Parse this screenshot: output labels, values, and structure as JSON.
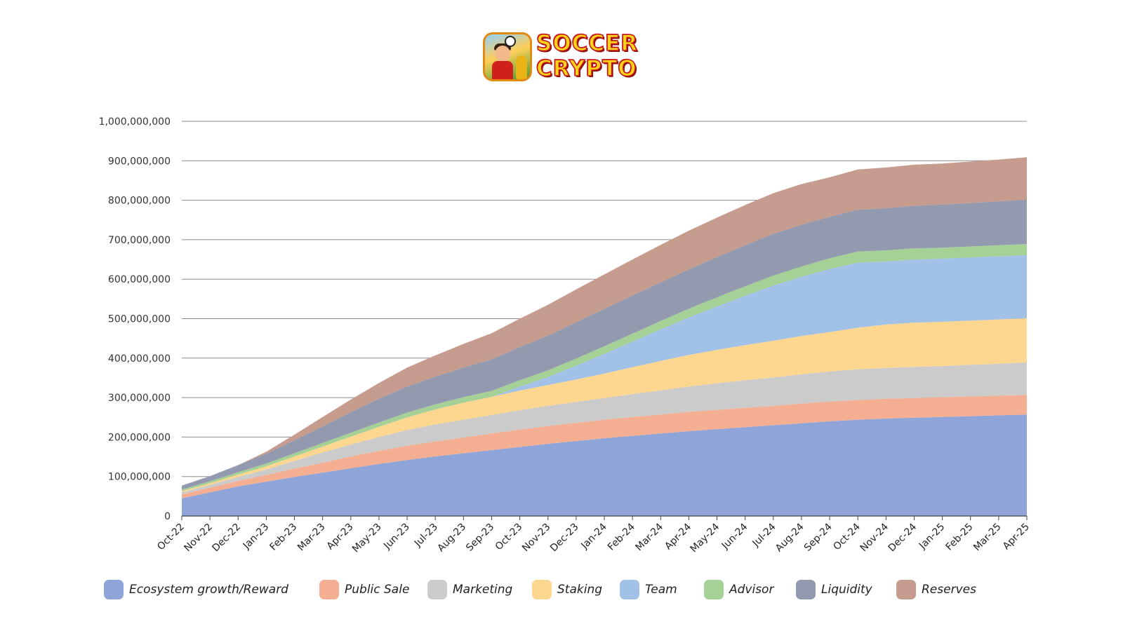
{
  "logo": {
    "line1": "SOCCER",
    "line2": "CRYPTO",
    "icon": "soccer-player-app-icon"
  },
  "chart_data": {
    "type": "area",
    "stacked": true,
    "title": "",
    "xlabel": "",
    "ylabel": "",
    "ylim": [
      0,
      1000000000
    ],
    "yticks": [
      "0",
      "100,000,000",
      "200,000,000",
      "300,000,000",
      "400,000,000",
      "500,000,000",
      "600,000,000",
      "700,000,000",
      "800,000,000",
      "900,000,000",
      "1,000,000,000"
    ],
    "grid": true,
    "legend_position": "bottom",
    "categories": [
      "Oct-22",
      "Nov-22",
      "Dec-22",
      "Jan-23",
      "Feb-23",
      "Mar-23",
      "Apr-23",
      "May-23",
      "Jun-23",
      "Jul-23",
      "Aug-23",
      "Sep-23",
      "Oct-23",
      "Nov-23",
      "Dec-23",
      "Jan-24",
      "Feb-24",
      "Mar-24",
      "Apr-24",
      "May-24",
      "Jun-24",
      "Jul-24",
      "Aug-24",
      "Sep-24",
      "Oct-24",
      "Nov-24",
      "Dec-24",
      "Jan-25",
      "Feb-25",
      "Mar-25",
      "Apr-25"
    ],
    "series": [
      {
        "name": "Ecosystem growth/Reward",
        "color": "#8fa5d9",
        "values": [
          45000000,
          60000000,
          75000000,
          87000000,
          99000000,
          110000000,
          121000000,
          132000000,
          142000000,
          151000000,
          159000000,
          167000000,
          175000000,
          183000000,
          190000000,
          197000000,
          203000000,
          209000000,
          215000000,
          220000000,
          225000000,
          230000000,
          235000000,
          240000000,
          244000000,
          247000000,
          249000000,
          251000000,
          253000000,
          255000000,
          257000000
        ]
      },
      {
        "name": "Public Sale",
        "color": "#f4af93",
        "values": [
          10000000,
          12000000,
          14000000,
          17000000,
          21000000,
          25000000,
          30000000,
          33000000,
          36000000,
          38000000,
          40000000,
          42000000,
          44000000,
          45000000,
          46000000,
          47000000,
          48000000,
          48000000,
          49000000,
          49000000,
          49000000,
          49000000,
          50000000,
          50000000,
          50000000,
          50000000,
          50000000,
          50000000,
          50000000,
          50000000,
          50000000
        ]
      },
      {
        "name": "Marketing",
        "color": "#cbcbcb",
        "values": [
          5000000,
          7000000,
          10000000,
          14000000,
          20000000,
          26000000,
          30000000,
          35000000,
          40000000,
          43000000,
          45000000,
          47000000,
          49000000,
          51000000,
          53000000,
          55000000,
          58000000,
          61000000,
          64000000,
          67000000,
          70000000,
          72000000,
          74000000,
          76000000,
          78000000,
          78000000,
          79000000,
          79000000,
          80000000,
          81000000,
          82000000
        ]
      },
      {
        "name": "Staking",
        "color": "#fdd68f",
        "values": [
          3000000,
          4000000,
          6000000,
          8000000,
          11000000,
          15000000,
          20000000,
          26000000,
          32000000,
          38000000,
          43000000,
          46000000,
          50000000,
          53000000,
          57000000,
          62000000,
          68000000,
          75000000,
          80000000,
          85000000,
          89000000,
          93000000,
          97000000,
          100000000,
          105000000,
          110000000,
          112000000,
          112000000,
          112000000,
          112000000,
          112000000
        ]
      },
      {
        "name": "Team",
        "color": "#a2c1e6",
        "values": [
          0,
          0,
          0,
          0,
          0,
          0,
          0,
          0,
          0,
          0,
          0,
          0,
          10000000,
          20000000,
          35000000,
          50000000,
          65000000,
          80000000,
          95000000,
          110000000,
          125000000,
          140000000,
          150000000,
          160000000,
          165000000,
          160000000,
          160000000,
          160000000,
          160000000,
          160000000,
          160000000
        ]
      },
      {
        "name": "Advisor",
        "color": "#a6d196",
        "values": [
          4000000,
          5000000,
          6000000,
          7000000,
          8000000,
          9000000,
          10000000,
          11000000,
          12000000,
          13000000,
          14000000,
          15000000,
          16000000,
          17000000,
          18000000,
          19000000,
          20000000,
          21000000,
          22000000,
          23000000,
          24000000,
          25000000,
          26000000,
          27000000,
          28000000,
          28000000,
          28000000,
          28000000,
          28000000,
          28000000,
          28000000
        ]
      },
      {
        "name": "Liquidity",
        "color": "#9399af",
        "values": [
          10000000,
          13000000,
          18000000,
          25000000,
          33000000,
          42000000,
          52000000,
          60000000,
          66000000,
          70000000,
          75000000,
          80000000,
          84000000,
          88000000,
          92000000,
          95000000,
          97000000,
          98000000,
          100000000,
          102000000,
          104000000,
          106000000,
          106000000,
          105000000,
          106000000,
          107000000,
          108000000,
          109000000,
          110000000,
          111000000,
          112000000
        ]
      },
      {
        "name": "Reserves",
        "color": "#c69c8f",
        "values": [
          0,
          0,
          0,
          5000000,
          14000000,
          24000000,
          32000000,
          40000000,
          48000000,
          54000000,
          60000000,
          66000000,
          72000000,
          78000000,
          83000000,
          87000000,
          91000000,
          95000000,
          98000000,
          100000000,
          102000000,
          103000000,
          103000000,
          100000000,
          102000000,
          103000000,
          104000000,
          104000000,
          105000000,
          106000000,
          108000000
        ]
      }
    ]
  }
}
